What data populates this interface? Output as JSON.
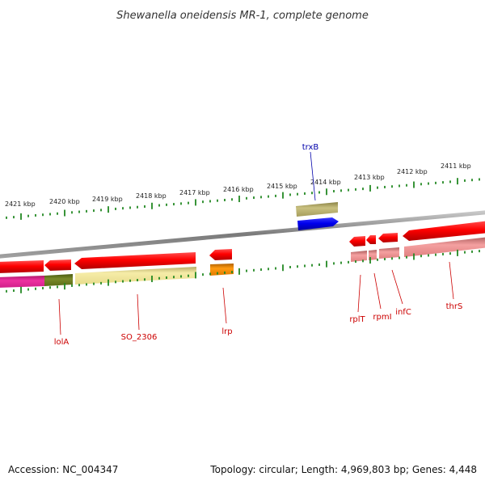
{
  "title": "Shewanella oneidensis MR-1, complete genome",
  "footer": {
    "accession": "Accession: NC_004347",
    "topology": "Topology: circular; Length: 4,969,803 bp; Genes: 4,448"
  },
  "scale_labels": [
    "2421 kbp",
    "2420 kbp",
    "2419 kbp",
    "2418 kbp",
    "2417 kbp",
    "2416 kbp",
    "2415 kbp",
    "2414 kbp",
    "2413 kbp",
    "2412 kbp",
    "2411 kbp"
  ],
  "genes": [
    {
      "name": "trxB",
      "strand": "+",
      "color": "#0000dd"
    },
    {
      "name": "lolA",
      "strand": "-",
      "color": "#dd0000"
    },
    {
      "name": "SO_2306",
      "strand": "-",
      "color": "#dd0000"
    },
    {
      "name": "lrp",
      "strand": "-",
      "color": "#dd0000"
    },
    {
      "name": "rplT",
      "strand": "-",
      "color": "#dd0000"
    },
    {
      "name": "rpmI",
      "strand": "-",
      "color": "#dd0000"
    },
    {
      "name": "infC",
      "strand": "-",
      "color": "#dd0000"
    },
    {
      "name": "thrS",
      "strand": "-",
      "color": "#dd0000"
    }
  ],
  "colors": {
    "forward_gene": "#0000dd",
    "reverse_gene": "#ee0000",
    "backbone": "#888888",
    "tick": "#228822",
    "forward_label": "#0000aa",
    "reverse_label": "#cc0000",
    "cog_khaki": "#b0a860",
    "cog_magenta": "#e0208a",
    "cog_olive": "#6b7a20",
    "cog_yellow": "#f2e69a",
    "cog_orange": "#ee8800",
    "cog_pink": "#ee8888"
  }
}
